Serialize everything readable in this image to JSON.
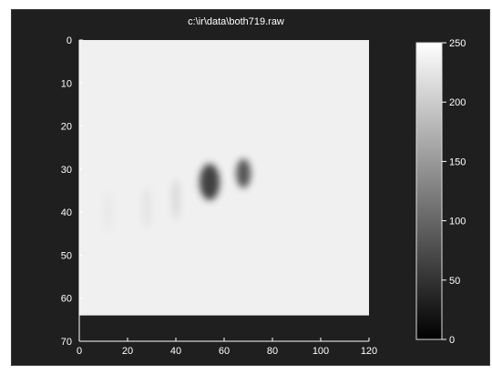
{
  "chart_data": {
    "type": "heatmap",
    "title": "c:\\ir\\data\\both719.raw",
    "xlabel": "",
    "ylabel": "",
    "xlim": [
      0,
      120
    ],
    "ylim": [
      70,
      0
    ],
    "x_ticks": [
      0,
      20,
      40,
      60,
      80,
      100,
      120
    ],
    "y_ticks": [
      0,
      10,
      20,
      30,
      40,
      50,
      60,
      70
    ],
    "image_extent": {
      "x": [
        0,
        120
      ],
      "y": [
        0,
        64
      ]
    },
    "background_intensity": 235,
    "dark_spots": [
      {
        "x": 54,
        "y": 33,
        "intensity": 55
      },
      {
        "x": 68,
        "y": 31,
        "intensity": 75
      },
      {
        "x": 40,
        "y": 37,
        "intensity": 190
      },
      {
        "x": 28,
        "y": 39,
        "intensity": 210
      },
      {
        "x": 12,
        "y": 40,
        "intensity": 220
      }
    ],
    "colorbar": {
      "min": 0,
      "max": 250,
      "ticks": [
        0,
        50,
        100,
        150,
        200,
        250
      ],
      "tick_labels": [
        "0",
        "50",
        "100",
        "150",
        "200",
        "250"
      ]
    },
    "colors": {
      "figure_background": "#1f1f1f",
      "axis_color": "#ffffff",
      "image_background": "#e8e8e8",
      "low_color": "#000000",
      "high_color": "#ffffff"
    }
  }
}
